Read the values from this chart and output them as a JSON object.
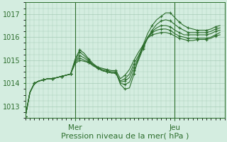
{
  "xlabel": "Pression niveau de la mer( hPa )",
  "ylim": [
    1012.5,
    1017.5
  ],
  "xlim": [
    0,
    44
  ],
  "yticks": [
    1013,
    1014,
    1015,
    1016,
    1017
  ],
  "xtick_positions": [
    11,
    33
  ],
  "xtick_labels": [
    "Mer",
    "Jeu"
  ],
  "bg_color": "#d4ede0",
  "grid_color": "#a8ccb8",
  "line_color": "#2d6e2d",
  "series": [
    [
      1012.55,
      1013.6,
      1014.0,
      1014.1,
      1014.15,
      1014.2,
      1014.2,
      1014.25,
      1014.3,
      1014.35,
      1014.4,
      1015.05,
      1015.45,
      1015.3,
      1015.05,
      1014.85,
      1014.7,
      1014.6,
      1014.55,
      1014.5,
      1014.5,
      1013.95,
      1013.75,
      1013.8,
      1014.4,
      1015.1,
      1015.65,
      1016.15,
      1016.5,
      1016.75,
      1016.9,
      1017.05,
      1017.05,
      1016.85,
      1016.65,
      1016.5,
      1016.4,
      1016.35,
      1016.3,
      1016.3,
      1016.3,
      1016.35,
      1016.45,
      1016.5
    ],
    [
      1012.55,
      1013.6,
      1014.0,
      1014.1,
      1014.15,
      1014.2,
      1014.2,
      1014.25,
      1014.3,
      1014.35,
      1014.4,
      1015.0,
      1015.35,
      1015.2,
      1015.0,
      1014.8,
      1014.65,
      1014.55,
      1014.5,
      1014.45,
      1014.45,
      1014.0,
      1013.95,
      1014.05,
      1014.55,
      1015.0,
      1015.5,
      1015.95,
      1016.3,
      1016.55,
      1016.7,
      1016.75,
      1016.7,
      1016.55,
      1016.4,
      1016.3,
      1016.2,
      1016.2,
      1016.2,
      1016.2,
      1016.2,
      1016.25,
      1016.35,
      1016.4
    ],
    [
      1012.55,
      1013.6,
      1014.0,
      1014.1,
      1014.15,
      1014.2,
      1014.2,
      1014.25,
      1014.3,
      1014.35,
      1014.4,
      1014.95,
      1015.2,
      1015.1,
      1014.95,
      1014.8,
      1014.65,
      1014.55,
      1014.5,
      1014.45,
      1014.45,
      1014.05,
      1014.1,
      1014.25,
      1014.7,
      1015.1,
      1015.55,
      1016.0,
      1016.25,
      1016.4,
      1016.5,
      1016.5,
      1016.45,
      1016.3,
      1016.2,
      1016.1,
      1016.1,
      1016.1,
      1016.1,
      1016.1,
      1016.1,
      1016.15,
      1016.25,
      1016.3
    ],
    [
      1012.55,
      1013.6,
      1014.0,
      1014.1,
      1014.15,
      1014.2,
      1014.2,
      1014.25,
      1014.3,
      1014.35,
      1014.4,
      1014.9,
      1015.1,
      1015.0,
      1014.9,
      1014.75,
      1014.65,
      1014.55,
      1014.5,
      1014.45,
      1014.45,
      1014.1,
      1014.2,
      1014.4,
      1014.85,
      1015.2,
      1015.6,
      1015.95,
      1016.2,
      1016.3,
      1016.35,
      1016.35,
      1016.3,
      1016.15,
      1016.05,
      1016.0,
      1015.95,
      1015.95,
      1015.95,
      1015.95,
      1015.95,
      1016.0,
      1016.1,
      1016.2
    ],
    [
      1012.55,
      1013.6,
      1014.0,
      1014.1,
      1014.15,
      1014.2,
      1014.2,
      1014.25,
      1014.3,
      1014.35,
      1014.4,
      1014.85,
      1015.0,
      1014.95,
      1014.9,
      1014.8,
      1014.7,
      1014.65,
      1014.6,
      1014.55,
      1014.55,
      1014.2,
      1014.35,
      1014.6,
      1015.0,
      1015.35,
      1015.65,
      1015.95,
      1016.1,
      1016.15,
      1016.2,
      1016.2,
      1016.15,
      1016.05,
      1015.95,
      1015.9,
      1015.85,
      1015.85,
      1015.9,
      1015.9,
      1015.9,
      1015.95,
      1016.05,
      1016.1
    ]
  ],
  "marker_every": 2
}
